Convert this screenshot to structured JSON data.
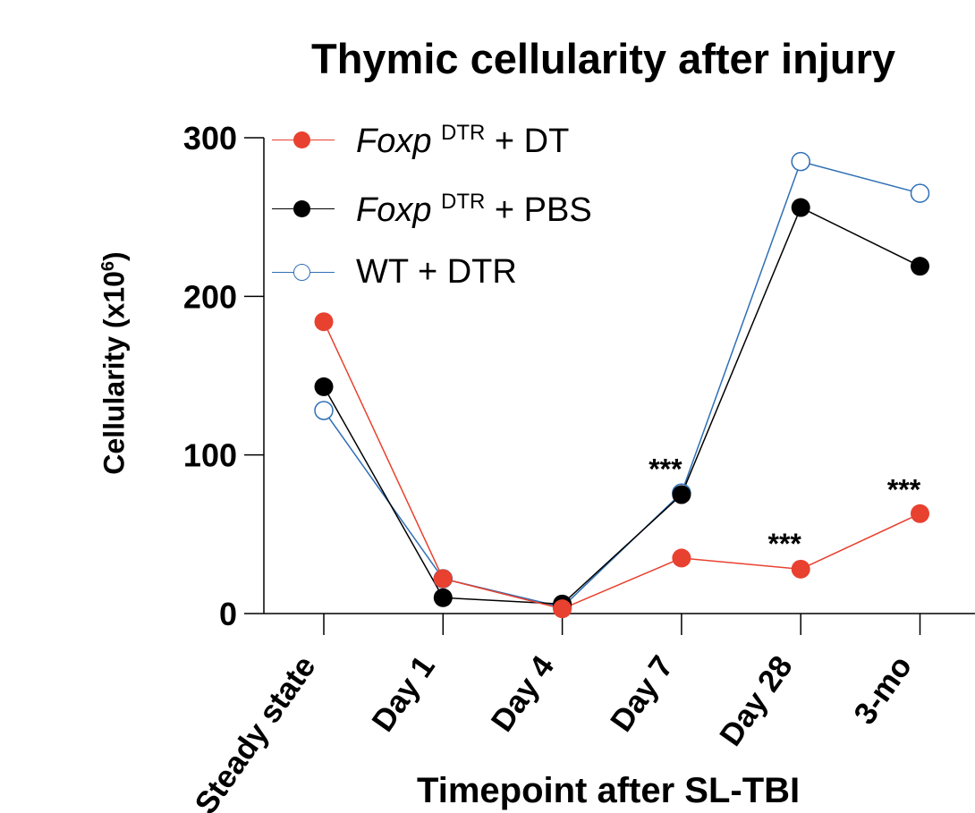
{
  "chart_data": {
    "type": "line",
    "title": "Thymic cellularity after injury",
    "xlabel": "Timepoint after SL-TBI",
    "ylabel": "Cellularity (x10",
    "ylabel_sup": "6",
    "ylabel_close": ")",
    "ylim": [
      0,
      300
    ],
    "yticks": [
      "0",
      "100",
      "200",
      "300"
    ],
    "ytick_values": [
      0,
      100,
      200,
      300
    ],
    "categories": [
      "Steady state",
      "Day 1",
      "Day 4",
      "Day 7",
      "Day 28",
      "3-mo"
    ],
    "series": [
      {
        "name_italic": "Foxp",
        "name_sup": "DTR",
        "name_rest": " + DT",
        "values": [
          184,
          22,
          3,
          35,
          28,
          63
        ],
        "color": "#e8412f",
        "marker": "filled"
      },
      {
        "name_italic": "Foxp",
        "name_sup": "DTR",
        "name_rest": " + PBS",
        "values": [
          143,
          10,
          6,
          75,
          256,
          219
        ],
        "color": "#000000",
        "marker": "filled"
      },
      {
        "name_italic": "",
        "name_sup": "",
        "name_rest": "WT + DTR",
        "values": [
          128,
          22,
          4,
          76,
          285,
          265
        ],
        "color": "#2f6fb5",
        "marker": "open"
      }
    ],
    "annotations": [
      {
        "text": "***",
        "category": "Day 7",
        "y": 95
      },
      {
        "text": "***",
        "category": "Day 28",
        "y": 48
      },
      {
        "text": "***",
        "category": "3-mo",
        "y": 82
      }
    ],
    "legend_position": "top-left",
    "grid": false
  }
}
